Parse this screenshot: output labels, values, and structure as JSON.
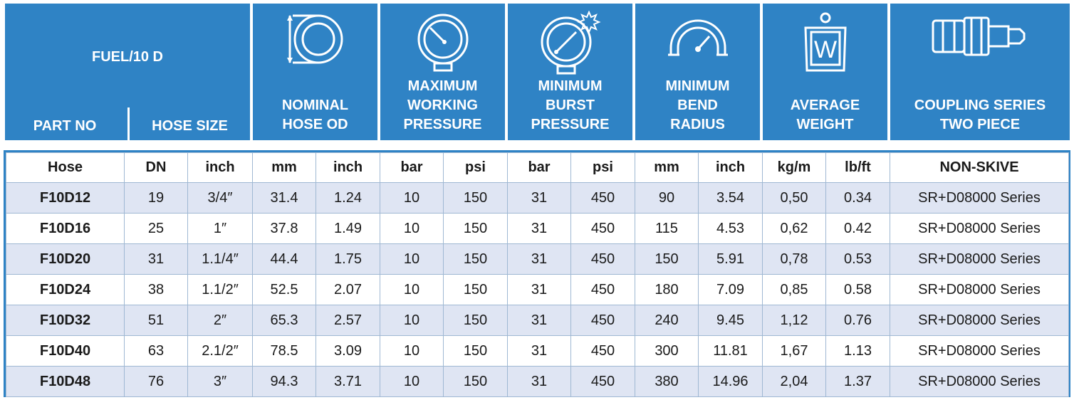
{
  "header": {
    "fuel_label": "FUEL/10 D",
    "part_no": "PART NO",
    "hose_size": "HOSE SIZE",
    "nominal_od": [
      "NOMINAL",
      "HOSE OD"
    ],
    "max_working": [
      "MAXIMUM",
      "WORKING",
      "PRESSURE"
    ],
    "min_burst": [
      "MINIMUM",
      "BURST",
      "PRESSURE"
    ],
    "min_bend": [
      "MINIMUM",
      "BEND",
      "RADIUS"
    ],
    "avg_weight": [
      "AVERAGE",
      "WEIGHT"
    ],
    "coupling": [
      "COUPLING SERIES",
      "TWO PIECE"
    ],
    "weight_icon_letter": "W",
    "icons": [
      "hose-od-icon",
      "pressure-gauge-icon",
      "burst-gauge-icon",
      "bend-radius-icon",
      "weight-icon",
      "coupling-icon"
    ],
    "accent_color": "#2f83c5",
    "row_alt_color": "#dfe5f3"
  },
  "units": [
    "Hose",
    "DN",
    "inch",
    "mm",
    "inch",
    "bar",
    "psi",
    "bar",
    "psi",
    "mm",
    "inch",
    "kg/m",
    "lb/ft",
    "NON-SKIVE"
  ],
  "rows": [
    [
      "F10D12",
      "19",
      "3/4″",
      "31.4",
      "1.24",
      "10",
      "150",
      "31",
      "450",
      "90",
      "3.54",
      "0,50",
      "0.34",
      "SR+D08000 Series"
    ],
    [
      "F10D16",
      "25",
      "1″",
      "37.8",
      "1.49",
      "10",
      "150",
      "31",
      "450",
      "115",
      "4.53",
      "0,62",
      "0.42",
      "SR+D08000 Series"
    ],
    [
      "F10D20",
      "31",
      "1.1/4″",
      "44.4",
      "1.75",
      "10",
      "150",
      "31",
      "450",
      "150",
      "5.91",
      "0,78",
      "0.53",
      "SR+D08000 Series"
    ],
    [
      "F10D24",
      "38",
      "1.1/2″",
      "52.5",
      "2.07",
      "10",
      "150",
      "31",
      "450",
      "180",
      "7.09",
      "0,85",
      "0.58",
      "SR+D08000 Series"
    ],
    [
      "F10D32",
      "51",
      "2″",
      "65.3",
      "2.57",
      "10",
      "150",
      "31",
      "450",
      "240",
      "9.45",
      "1,12",
      "0.76",
      "SR+D08000 Series"
    ],
    [
      "F10D40",
      "63",
      "2.1/2″",
      "78.5",
      "3.09",
      "10",
      "150",
      "31",
      "450",
      "300",
      "11.81",
      "1,67",
      "1.13",
      "SR+D08000 Series"
    ],
    [
      "F10D48",
      "76",
      "3″",
      "94.3",
      "3.71",
      "10",
      "150",
      "31",
      "450",
      "380",
      "14.96",
      "2,04",
      "1.37",
      "SR+D08000 Series"
    ]
  ]
}
